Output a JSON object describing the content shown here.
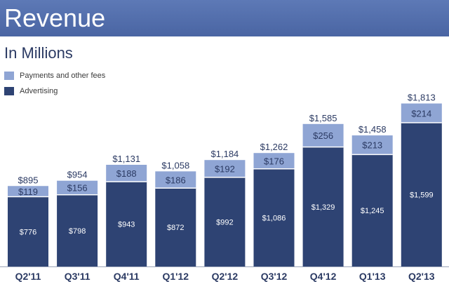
{
  "header": {
    "title": "Revenue"
  },
  "subtitle": "In Millions",
  "colors": {
    "header_bg": "#4f6aa8",
    "payments": "#8fa5d4",
    "advertising": "#2e4373",
    "text": "#2b3a63"
  },
  "chart_data": {
    "type": "bar",
    "stacked": true,
    "title": "Revenue",
    "subtitle": "In Millions",
    "categories": [
      "Q2'11",
      "Q3'11",
      "Q4'11",
      "Q1'12",
      "Q2'12",
      "Q3'12",
      "Q4'12",
      "Q1'13",
      "Q2'13"
    ],
    "series": [
      {
        "name": "Advertising",
        "values": [
          776,
          798,
          943,
          872,
          992,
          1086,
          1329,
          1245,
          1599
        ],
        "labels": [
          "$776",
          "$798",
          "$943",
          "$872",
          "$992",
          "$1,086",
          "$1,329",
          "$1,245",
          "$1,599"
        ]
      },
      {
        "name": "Payments and other fees",
        "values": [
          119,
          156,
          188,
          186,
          192,
          176,
          256,
          213,
          214
        ],
        "labels": [
          "$119",
          "$156",
          "$188",
          "$186",
          "$192",
          "$176",
          "$256",
          "$213",
          "$214"
        ]
      }
    ],
    "totals": [
      895,
      954,
      1131,
      1058,
      1184,
      1262,
      1585,
      1458,
      1813
    ],
    "total_labels": [
      "$895",
      "$954",
      "$1,131",
      "$1,058",
      "$1,184",
      "$1,262",
      "$1,585",
      "$1,458",
      "$1,813"
    ],
    "ylim": [
      0,
      1900
    ],
    "legend": [
      {
        "name": "Payments and other fees"
      },
      {
        "name": "Advertising"
      }
    ],
    "legend_position": "top-left"
  }
}
